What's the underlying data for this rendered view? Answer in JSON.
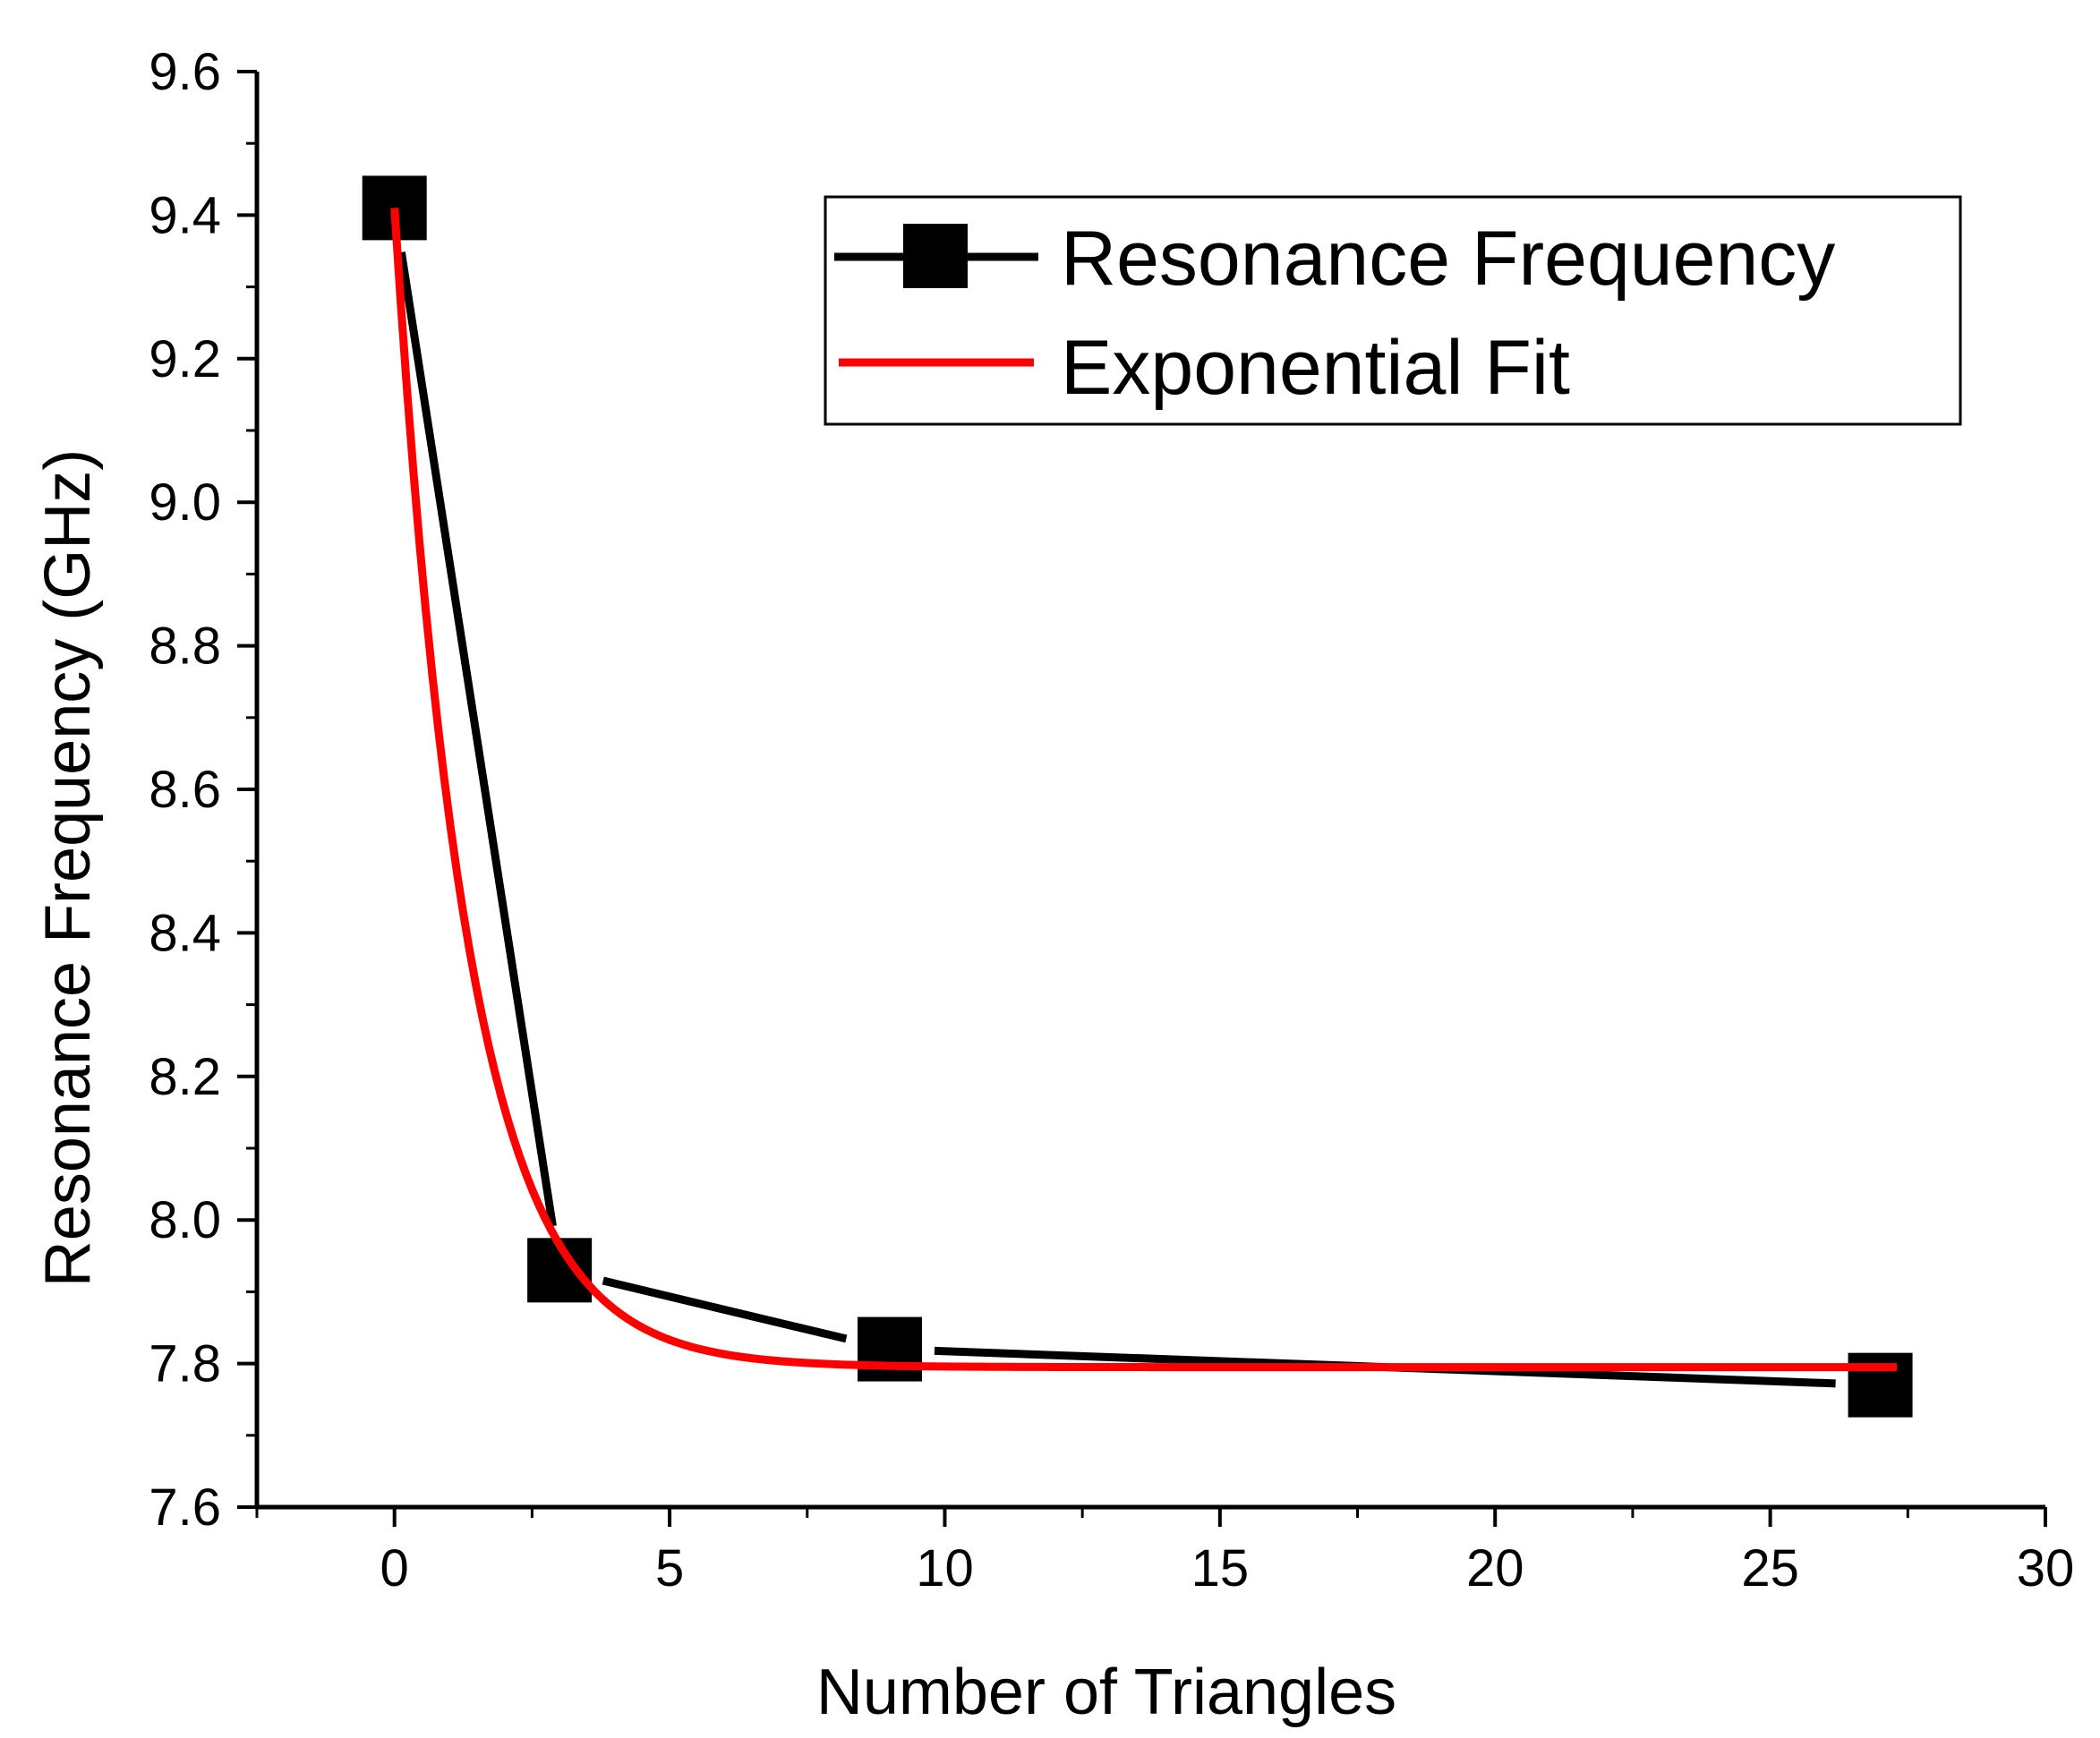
{
  "chart_data": {
    "type": "line",
    "xlabel": "Number of Triangles",
    "ylabel": "Resonance Frequency (GHz)",
    "xlim": [
      -2.5,
      30
    ],
    "ylim": [
      7.6,
      9.6
    ],
    "xticks": [
      0,
      5,
      10,
      15,
      20,
      25,
      30
    ],
    "yticks": [
      7.6,
      7.8,
      8.0,
      8.2,
      8.4,
      8.6,
      8.8,
      9.0,
      9.2,
      9.4,
      9.6
    ],
    "xtick_labels": [
      "0",
      "5",
      "10",
      "15",
      "20",
      "25",
      "30"
    ],
    "ytick_labels": [
      "7.6",
      "7.8",
      "8.0",
      "8.2",
      "8.4",
      "8.6",
      "8.8",
      "9.0",
      "9.2",
      "9.4",
      "9.6"
    ],
    "grid": false,
    "legend_position": "top-right",
    "series": [
      {
        "name": "Resonance Frequency",
        "style": "line-square-markers",
        "color": "#000000",
        "x": [
          0,
          3,
          9,
          27
        ],
        "y": [
          9.41,
          7.93,
          7.82,
          7.77
        ]
      },
      {
        "name": "Exponential Fit",
        "style": "line",
        "color": "#ff0000",
        "model": {
          "y0": 7.795,
          "A": 1.615,
          "k": 0.75
        },
        "x_range": [
          0,
          27.3
        ]
      }
    ]
  }
}
